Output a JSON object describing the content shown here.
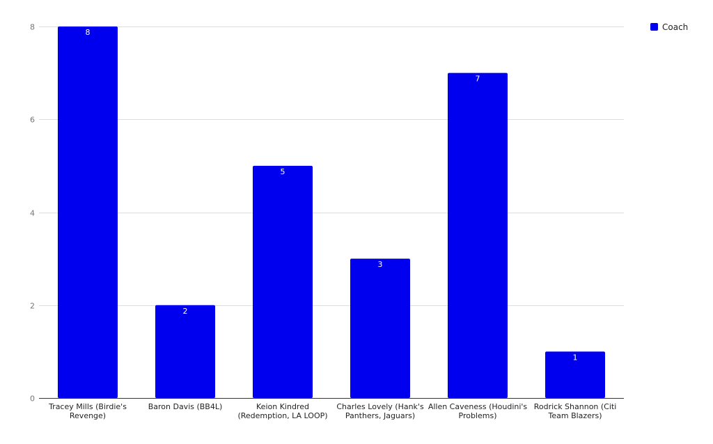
{
  "chart_data": {
    "type": "bar",
    "categories": [
      "Tracey Mills (Birdie's Revenge)",
      "Baron Davis (BB4L)",
      "Keion Kindred (Redemption, LA LOOP)",
      "Charles Lovely (Hank's Panthers, Jaguars)",
      "Allen Caveness (Houdini's Problems)",
      "Rodrick Shannon (Citi Team Blazers)"
    ],
    "category_label_lines": [
      [
        "Tracey Mills (Birdie's",
        "Revenge)"
      ],
      [
        "Baron Davis (BB4L)"
      ],
      [
        "Keion Kindred",
        "(Redemption, LA LOOP)"
      ],
      [
        "Charles Lovely (Hank's",
        "Panthers, Jaguars)"
      ],
      [
        "Allen Caveness (Houdini's",
        "Problems)"
      ],
      [
        "Rodrick Shannon (Citi",
        "Team Blazers)"
      ]
    ],
    "series": [
      {
        "name": "Coach",
        "values": [
          8,
          2,
          5,
          3,
          7,
          1
        ],
        "color": "#0000ee"
      }
    ],
    "data_labels": [
      "8",
      "2",
      "5",
      "3",
      "7",
      "1"
    ],
    "y_ticks": [
      "0",
      "2",
      "4",
      "6",
      "8"
    ],
    "ylim": [
      0,
      8
    ],
    "title": "",
    "xlabel": "",
    "ylabel": "",
    "grid": true,
    "legend_position": "top-right",
    "colors": {
      "gridline": "#dddddd",
      "axis": "#333333"
    }
  }
}
